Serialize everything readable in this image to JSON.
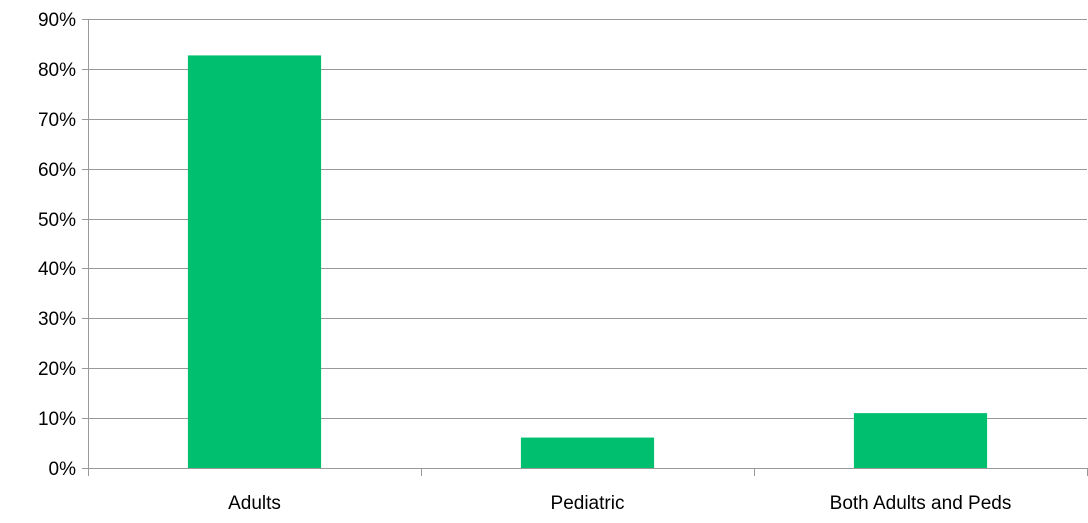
{
  "chart_data": {
    "type": "bar",
    "categories": [
      "Adults",
      "Pediatric",
      "Both Adults and Peds"
    ],
    "values": [
      82.7,
      6.1,
      11.0
    ],
    "value_unit": "%",
    "ylim": [
      0,
      90
    ],
    "y_ticks": [
      0,
      10,
      20,
      30,
      40,
      50,
      60,
      70,
      80,
      90
    ],
    "y_tick_labels": [
      "0%",
      "10%",
      "20%",
      "30%",
      "40%",
      "50%",
      "60%",
      "70%",
      "80%",
      "90%"
    ],
    "title": "",
    "xlabel": "",
    "ylabel": "",
    "grid": true,
    "legend": "none",
    "bar_color": "#00BF6F",
    "grid_color": "#999999",
    "axis_color": "#999999"
  }
}
